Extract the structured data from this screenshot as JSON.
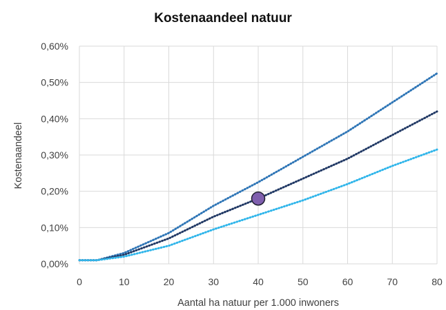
{
  "chart_data": {
    "type": "line",
    "title": "Kostenaandeel natuur",
    "xlabel": "Aantal ha natuur per 1.000 inwoners",
    "ylabel": "Kostenaandeel",
    "xlim": [
      0,
      80
    ],
    "ylim": [
      0,
      0.006
    ],
    "x_ticks": [
      0,
      10,
      20,
      30,
      40,
      50,
      60,
      70,
      80
    ],
    "x_tick_labels": [
      "0",
      "10",
      "20",
      "30",
      "40",
      "50",
      "60",
      "70",
      "80"
    ],
    "y_ticks": [
      0,
      0.001,
      0.002,
      0.003,
      0.004,
      0.005,
      0.006
    ],
    "y_tick_labels": [
      "0,00%",
      "0,10%",
      "0,20%",
      "0,30%",
      "0,40%",
      "0,50%",
      "0,60%"
    ],
    "grid": true,
    "legend": "none",
    "series": [
      {
        "color": "#2e75b6",
        "style": "dotted",
        "points": [
          [
            0,
            0.0001
          ],
          [
            4,
            0.0001
          ],
          [
            10,
            0.0003
          ],
          [
            20,
            0.00085
          ],
          [
            30,
            0.0016
          ],
          [
            40,
            0.00225
          ],
          [
            50,
            0.00295
          ],
          [
            60,
            0.00365
          ],
          [
            70,
            0.00445
          ],
          [
            80,
            0.00525
          ]
        ]
      },
      {
        "color": "#203864",
        "style": "dotted",
        "points": [
          [
            0,
            0.0001
          ],
          [
            4,
            0.0001
          ],
          [
            10,
            0.00025
          ],
          [
            20,
            0.0007
          ],
          [
            30,
            0.0013
          ],
          [
            40,
            0.0018
          ],
          [
            50,
            0.00235
          ],
          [
            60,
            0.0029
          ],
          [
            70,
            0.00355
          ],
          [
            80,
            0.0042
          ]
        ]
      },
      {
        "color": "#2fb5ea",
        "style": "dotted",
        "points": [
          [
            0,
            0.0001
          ],
          [
            4,
            0.0001
          ],
          [
            10,
            0.0002
          ],
          [
            20,
            0.0005
          ],
          [
            30,
            0.00095
          ],
          [
            40,
            0.00135
          ],
          [
            50,
            0.00175
          ],
          [
            60,
            0.0022
          ],
          [
            70,
            0.0027
          ],
          [
            80,
            0.00315
          ]
        ]
      }
    ],
    "highlight_point": {
      "x": 40,
      "y": 0.0018,
      "color": "#7f5fae"
    }
  }
}
